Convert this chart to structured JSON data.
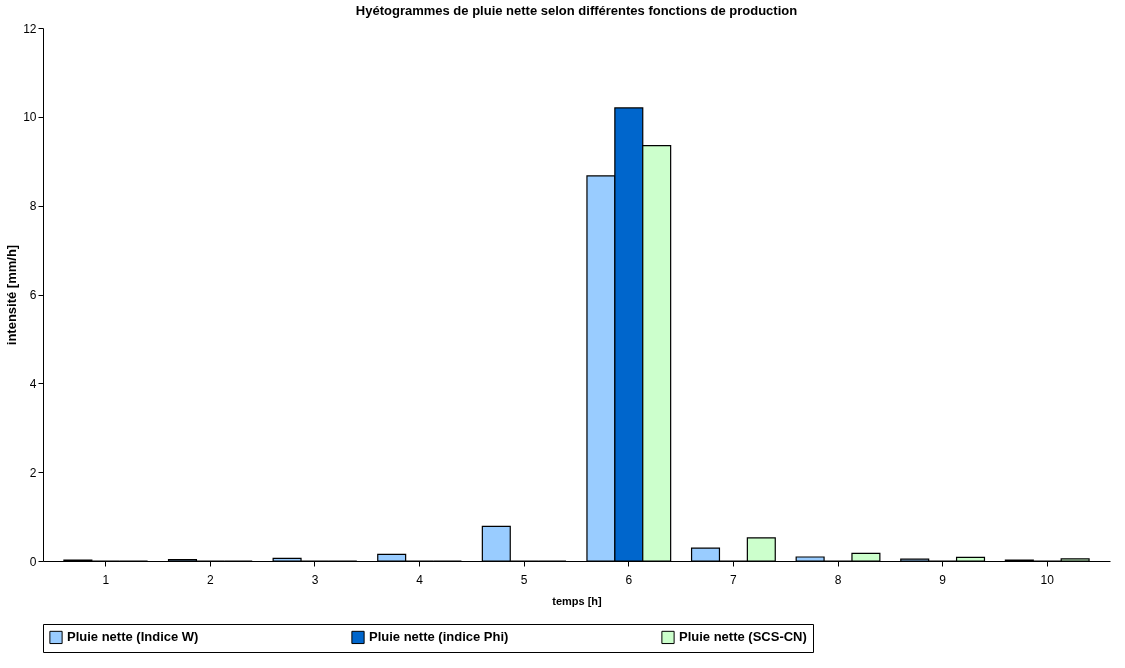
{
  "chart_data": {
    "type": "bar",
    "title": "Hyétogrammes de pluie nette selon différentes fonctions de production",
    "xlabel": "temps [h]",
    "ylabel": "intensité [mm/h]",
    "categories": [
      "1",
      "2",
      "3",
      "4",
      "5",
      "6",
      "7",
      "8",
      "9",
      "10"
    ],
    "series": [
      {
        "name": "Pluie nette (Indice W)",
        "color": "#99ccff",
        "values": [
          0.02,
          0.03,
          0.06,
          0.15,
          0.78,
          8.67,
          0.29,
          0.09,
          0.04,
          0.02
        ]
      },
      {
        "name": "Pluie nette (indice Phi)",
        "color": "#0066cc",
        "values": [
          0,
          0,
          0,
          0,
          0,
          10.2,
          0,
          0,
          0,
          0
        ]
      },
      {
        "name": "Pluie nette (SCS-CN)",
        "color": "#ccffcc",
        "values": [
          0,
          0,
          0,
          0,
          0,
          9.35,
          0.52,
          0.17,
          0.08,
          0.05
        ]
      }
    ],
    "ylim": [
      0,
      12
    ],
    "yticks": [
      0,
      2,
      4,
      6,
      8,
      10,
      12
    ],
    "grid": false,
    "legend": "bottom"
  }
}
